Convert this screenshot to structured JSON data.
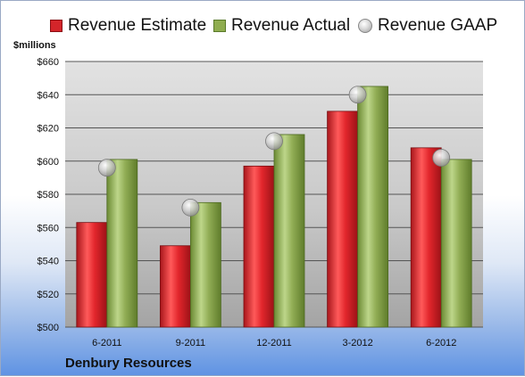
{
  "chart_data": {
    "type": "bar",
    "ylabel": "$millions",
    "ylim": [
      500,
      660
    ],
    "ytick_step": 20,
    "ytick_labels": [
      "$500",
      "$520",
      "$540",
      "$560",
      "$580",
      "$600",
      "$620",
      "$640",
      "$660"
    ],
    "categories": [
      "6-2011",
      "9-2011",
      "12-2011",
      "3-2012",
      "6-2012"
    ],
    "series": [
      {
        "name": "Revenue Estimate",
        "kind": "bar",
        "color": "#d4252a",
        "values": [
          563,
          549,
          597,
          630,
          608
        ]
      },
      {
        "name": "Revenue Actual",
        "kind": "bar",
        "color": "#8fad4f",
        "values": [
          601,
          575,
          616,
          645,
          601
        ]
      },
      {
        "name": "Revenue GAAP",
        "kind": "marker",
        "color": "#b8b8b8",
        "values": [
          596,
          572,
          612,
          640,
          602
        ]
      }
    ],
    "grid": true,
    "legend_position": "top",
    "footer": "Denbury Resources"
  }
}
